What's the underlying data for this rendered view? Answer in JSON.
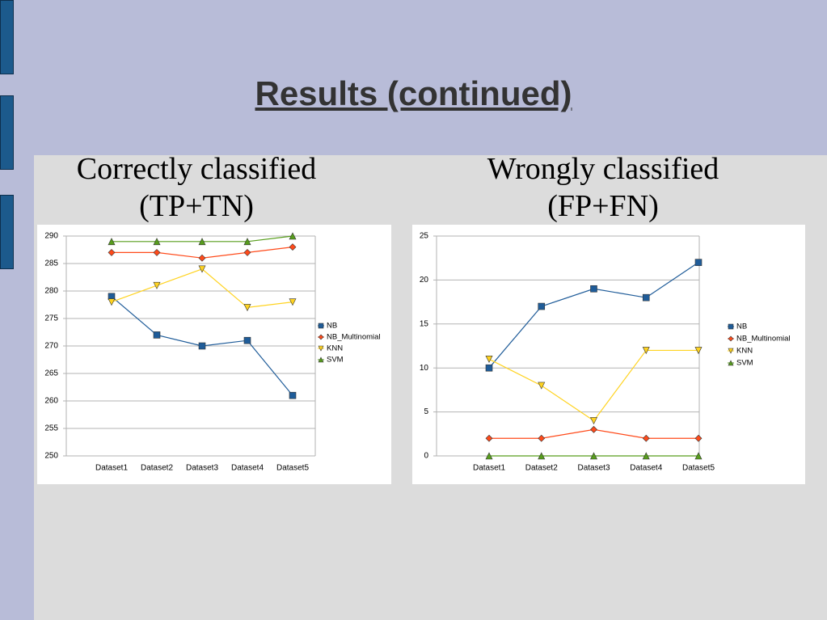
{
  "title": "Results (continued)",
  "chart_data": [
    {
      "type": "line",
      "title": "Correctly classified (TP+TN)",
      "categories": [
        "Dataset1",
        "Dataset2",
        "Dataset3",
        "Dataset4",
        "Dataset5"
      ],
      "series": [
        {
          "name": "NB",
          "color": "#1f5c99",
          "marker": "square",
          "values": [
            279,
            272,
            270,
            271,
            261
          ]
        },
        {
          "name": "NB_Multinomial",
          "color": "#ff4a1a",
          "marker": "diamond",
          "values": [
            287,
            287,
            286,
            287,
            288
          ]
        },
        {
          "name": "KNN",
          "color": "#ffd320",
          "marker": "triangle-down",
          "values": [
            278,
            281,
            284,
            277,
            278
          ]
        },
        {
          "name": "SVM",
          "color": "#579d1c",
          "marker": "triangle-up",
          "values": [
            289,
            289,
            289,
            289,
            290
          ]
        }
      ],
      "ylim": [
        250,
        290
      ],
      "yticks": [
        250,
        255,
        260,
        265,
        270,
        275,
        280,
        285,
        290
      ],
      "grid": true,
      "legend": "right"
    },
    {
      "type": "line",
      "title": "Wrongly classified (FP+FN)",
      "categories": [
        "Dataset1",
        "Dataset2",
        "Dataset3",
        "Dataset4",
        "Dataset5"
      ],
      "series": [
        {
          "name": "NB",
          "color": "#1f5c99",
          "marker": "square",
          "values": [
            10,
            17,
            19,
            18,
            22
          ]
        },
        {
          "name": "NB_Multinomial",
          "color": "#ff4a1a",
          "marker": "diamond",
          "values": [
            2,
            2,
            3,
            2,
            2
          ]
        },
        {
          "name": "KNN",
          "color": "#ffd320",
          "marker": "triangle-down",
          "values": [
            11,
            8,
            4,
            12,
            12
          ]
        },
        {
          "name": "SVM",
          "color": "#579d1c",
          "marker": "triangle-up",
          "values": [
            0,
            0,
            0,
            0,
            0
          ]
        }
      ],
      "ylim": [
        0,
        25
      ],
      "yticks": [
        0,
        5,
        10,
        15,
        20,
        25
      ],
      "grid": true,
      "legend": "right"
    }
  ]
}
